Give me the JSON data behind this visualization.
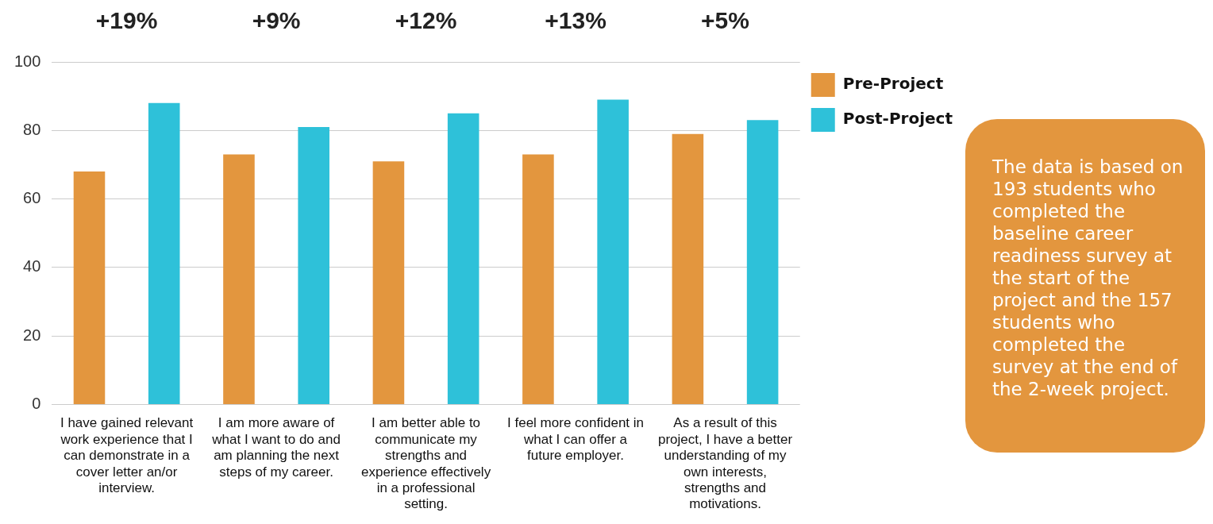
{
  "chart_data": {
    "type": "bar",
    "categories": [
      "I have gained relevant work experience that I can demonstrate in a cover letter an/or interview.",
      "I am more aware of what I want to do and am planning the next steps of my career.",
      "I am better able to communicate my strengths and experience effectively in a professional setting.",
      "I feel more confident in what I can offer a future employer.",
      "As a result of this project, I have a better understanding of my own interests, strengths and motivations."
    ],
    "series": [
      {
        "name": "Pre-Project",
        "color": "#e3963e",
        "values": [
          68,
          73,
          71,
          73,
          79
        ]
      },
      {
        "name": "Post-Project",
        "color": "#2ec1d9",
        "values": [
          88,
          81,
          85,
          89,
          83
        ]
      }
    ],
    "ylim": [
      0,
      100
    ],
    "yticks": [
      0,
      20,
      40,
      60,
      80,
      100
    ],
    "grid": "y",
    "legend": "top right",
    "annotations": [
      "+19%",
      "+9%",
      "+12%",
      "+13%",
      "+5%",
      "The data is based on 193 students who completed the baseline career readiness survey at the start of the project and the 157 students who completed the survey at the end of the 2-week project."
    ]
  }
}
